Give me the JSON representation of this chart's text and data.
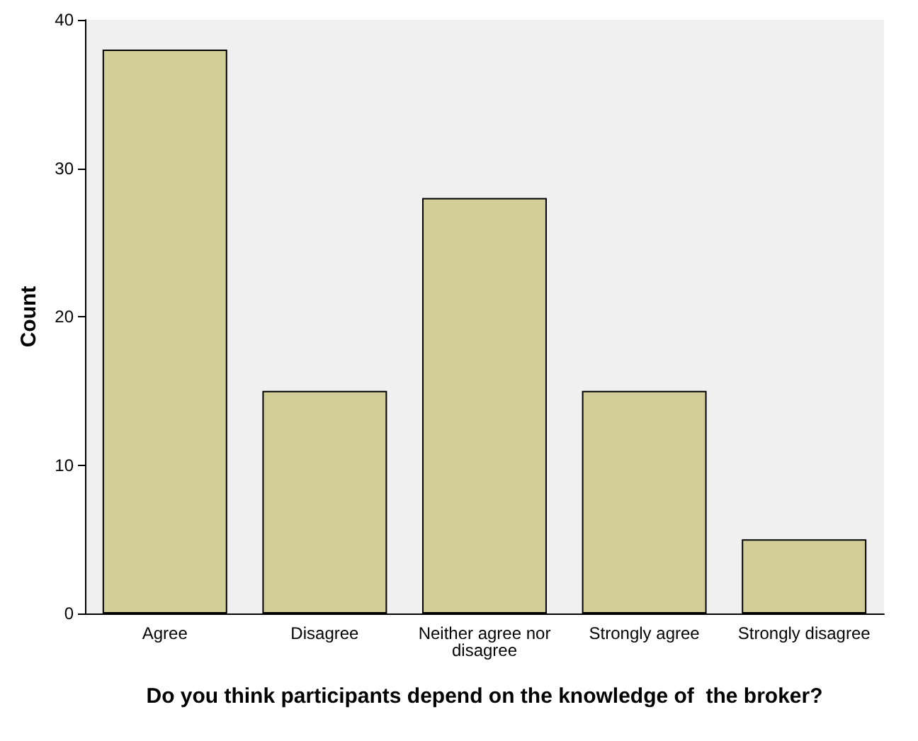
{
  "chart_data": {
    "type": "bar",
    "xlabel": "Do you think participants depend on the knowledge of  the broker?",
    "ylabel": "Count",
    "categories": [
      "Agree",
      "Disagree",
      "Neither agree nor disagree",
      "Strongly agree",
      "Strongly disagree"
    ],
    "values": [
      38,
      15,
      28,
      15,
      5
    ],
    "color": "#d3ce97",
    "ylim": [
      0,
      40
    ],
    "yticks": [
      0,
      10,
      20,
      30,
      40
    ]
  }
}
